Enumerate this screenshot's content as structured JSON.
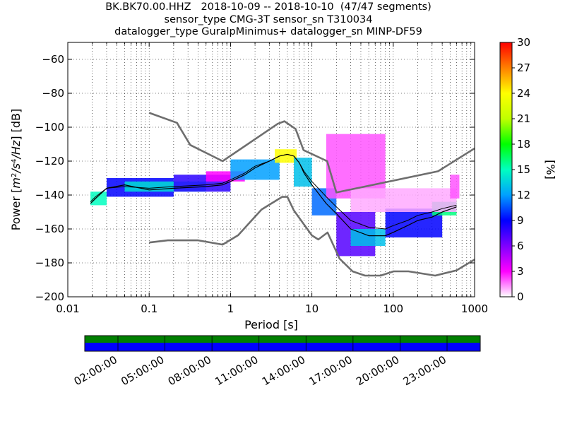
{
  "header": {
    "line1": "BK.BK70.00.HHZ   2018-10-09 -- 2018-10-10  (47/47 segments)",
    "line2": "sensor_type CMG-3T sensor_sn T310034",
    "line3": "datalogger_type GuralpMinimus+ datalogger_sn MINP-DF59"
  },
  "chart_data": [
    {
      "type": "heatmap",
      "subtype": "probabilistic power spectral density",
      "xlabel": "Period [s]",
      "ylabel": "Power [m^2/s^4/Hz] [dB]",
      "xscale": "log",
      "xlim": [
        0.01,
        1000
      ],
      "ylim": [
        -200,
        -50
      ],
      "xticks": [
        0.01,
        0.1,
        1,
        10,
        100,
        1000
      ],
      "xtick_labels": [
        "0.01",
        "0.1",
        "1",
        "10",
        "100",
        "1000"
      ],
      "yticks": [
        -200,
        -180,
        -160,
        -140,
        -120,
        -100,
        -80,
        -60
      ],
      "ytick_labels": [
        "−200",
        "−180",
        "−160",
        "−140",
        "−120",
        "−100",
        "−80",
        "−60"
      ],
      "grid": "dotted",
      "colorbar": {
        "label": "[%]",
        "range": [
          0,
          30
        ],
        "ticks": [
          0,
          3,
          6,
          9,
          12,
          15,
          18,
          21,
          24,
          27,
          30
        ],
        "colormap": "pqlx"
      },
      "mode_line": {
        "x": [
          0.019,
          0.022,
          0.03,
          0.05,
          0.1,
          0.2,
          0.5,
          0.8,
          1.0,
          1.5,
          2.0,
          3.0,
          4.0,
          5.0,
          6.0,
          7.0,
          8.0,
          10.0,
          15.0,
          20.0,
          30.0,
          50.0,
          80.0,
          100.0,
          150.0,
          200.0,
          300.0,
          400.0,
          600.0
        ],
        "y": [
          -145,
          -142,
          -136,
          -134,
          -137,
          -136,
          -135,
          -134,
          -132,
          -128,
          -124,
          -120,
          -117,
          -116,
          -117,
          -121,
          -127,
          -134,
          -145,
          -151,
          -160,
          -164,
          -164,
          -162,
          -158,
          -155,
          -153,
          -150,
          -147
        ]
      },
      "mean_line": {
        "x": [
          0.019,
          0.022,
          0.03,
          0.05,
          0.1,
          0.2,
          0.5,
          0.8,
          1.0,
          1.5,
          2.0,
          3.0,
          4.0,
          5.0,
          6.0,
          7.0,
          8.0,
          10.0,
          15.0,
          20.0,
          30.0,
          50.0,
          80.0,
          100.0,
          150.0,
          200.0,
          300.0,
          400.0,
          600.0
        ],
        "y": [
          -144,
          -141,
          -136,
          -135,
          -136,
          -135,
          -134,
          -133,
          -131,
          -127,
          -123,
          -120,
          -117,
          -116,
          -117,
          -121,
          -126,
          -132,
          -141,
          -147,
          -155,
          -159,
          -160,
          -158,
          -155,
          -152,
          -150,
          -148,
          -146
        ]
      },
      "nhnm": {
        "x": [
          0.1,
          0.22,
          0.32,
          0.8,
          3.8,
          4.6,
          6.3,
          7.9,
          15.4,
          20,
          354.8,
          1000
        ],
        "y": [
          -91.5,
          -97.4,
          -110.5,
          -120.0,
          -98.0,
          -96.5,
          -101.0,
          -113.5,
          -120.0,
          -138.5,
          -126.0,
          -112.5
        ]
      },
      "nlnm": {
        "x": [
          0.1,
          0.17,
          0.4,
          0.8,
          1.24,
          2.4,
          4.3,
          5.0,
          6.0,
          10.0,
          12.0,
          15.6,
          21.9,
          31.6,
          45.0,
          70.0,
          101.0,
          154.0,
          328.0,
          600.0,
          1000.0
        ],
        "y": [
          -168.0,
          -166.7,
          -166.7,
          -169.2,
          -163.7,
          -148.6,
          -141.1,
          -141.1,
          -149.0,
          -163.8,
          -166.2,
          -162.1,
          -177.5,
          -185.0,
          -187.5,
          -187.5,
          -185.0,
          -185.0,
          -187.5,
          -184.4,
          -178.0
        ]
      },
      "density_bands": [
        {
          "x0": 0.019,
          "x1": 0.03,
          "y_top": -138,
          "y_bot": -146,
          "level": 15
        },
        {
          "x0": 0.03,
          "x1": 0.2,
          "y_top": -130,
          "y_bot": -141,
          "level": 9
        },
        {
          "x0": 0.05,
          "x1": 0.5,
          "y_top": -132,
          "y_bot": -138,
          "level": 14
        },
        {
          "x0": 0.2,
          "x1": 1.0,
          "y_top": -128,
          "y_bot": -138,
          "level": 8
        },
        {
          "x0": 0.5,
          "x1": 1.5,
          "y_top": -126,
          "y_bot": -132,
          "level": 3
        },
        {
          "x0": 1.0,
          "x1": 4.0,
          "y_top": -119,
          "y_bot": -131,
          "level": 12
        },
        {
          "x0": 3.5,
          "x1": 6.5,
          "y_top": -113,
          "y_bot": -121,
          "level": 24
        },
        {
          "x0": 6.0,
          "x1": 10.0,
          "y_top": -118,
          "y_bot": -135,
          "level": 13
        },
        {
          "x0": 10.0,
          "x1": 20.0,
          "y_top": -136,
          "y_bot": -152,
          "level": 11
        },
        {
          "x0": 20.0,
          "x1": 60.0,
          "y_top": -150,
          "y_bot": -176,
          "level": 7
        },
        {
          "x0": 30.0,
          "x1": 80.0,
          "y_top": -160,
          "y_bot": -170,
          "level": 13
        },
        {
          "x0": 80.0,
          "x1": 400.0,
          "y_top": -148,
          "y_bot": -165,
          "level": 9
        },
        {
          "x0": 300.0,
          "x1": 600.0,
          "y_top": -144,
          "y_bot": -152,
          "level": 16
        },
        {
          "x0": 15.0,
          "x1": 80.0,
          "y_top": -104,
          "y_bot": -142,
          "level": 2
        },
        {
          "x0": 30.0,
          "x1": 600.0,
          "y_top": -136,
          "y_bot": -150,
          "level": 1
        },
        {
          "x0": 500.0,
          "x1": 650.0,
          "y_top": -128,
          "y_bot": -142,
          "level": 2
        }
      ]
    },
    {
      "type": "timeline",
      "subtype": "data coverage",
      "tick_labels": [
        "02:00:00",
        "05:00:00",
        "08:00:00",
        "11:00:00",
        "14:00:00",
        "17:00:00",
        "20:00:00",
        "23:00:00"
      ],
      "coverage_color": "#0000ff",
      "segment_color": "#008000",
      "segments": 47
    }
  ],
  "colors": {
    "model_line": "#6e6e6e",
    "mode_line": "#000000",
    "mean_line": "#000000",
    "colormap": [
      "#ffffff",
      "#ff00ff",
      "#7f00ff",
      "#0000ff",
      "#00a0ff",
      "#00ffc0",
      "#00ff00",
      "#c0ff00",
      "#ffff00",
      "#ff8000",
      "#ff0000"
    ]
  }
}
